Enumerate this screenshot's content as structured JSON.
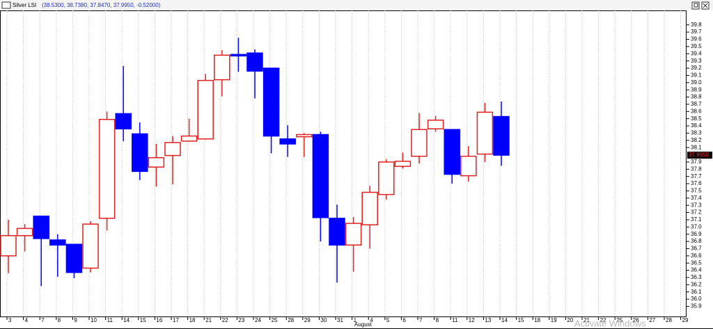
{
  "header": {
    "title": "Silver LSI",
    "values_text": "(38.5300, 38.7380, 37.8470, 37.9950, -0.52000)"
  },
  "chart_data": {
    "type": "candlestick",
    "categories": [
      "3",
      "4",
      "7",
      "8",
      "9",
      "10",
      "11",
      "14",
      "15",
      "16",
      "17",
      "18",
      "21",
      "22",
      "23",
      "24",
      "25",
      "28",
      "29",
      "30",
      "31",
      "1",
      "4",
      "5",
      "6",
      "7",
      "8",
      "11",
      "12",
      "13",
      "14",
      "15",
      "18",
      "19",
      "20",
      "21",
      "22",
      "25",
      "26",
      "27",
      "28",
      "29"
    ],
    "x_group_label": "August",
    "open": [
      36.6,
      36.88,
      37.15,
      36.82,
      36.76,
      36.43,
      37.12,
      38.57,
      38.29,
      37.83,
      37.99,
      38.19,
      38.22,
      39.04,
      39.39,
      39.41,
      39.2,
      38.22,
      38.25,
      38.28,
      37.12,
      36.75,
      37.03,
      37.45,
      37.84,
      37.98,
      38.36,
      38.35,
      37.71,
      38.01,
      38.53,
      null,
      null,
      null,
      null,
      null,
      null,
      null,
      null,
      null,
      null,
      null
    ],
    "high": [
      37.1,
      37.04,
      37.15,
      36.9,
      36.76,
      37.08,
      38.6,
      39.23,
      38.45,
      38.15,
      38.26,
      38.5,
      39.12,
      39.45,
      39.62,
      39.46,
      39.2,
      38.41,
      38.3,
      38.32,
      37.31,
      37.14,
      37.57,
      37.94,
      38.03,
      38.58,
      38.54,
      38.35,
      38.12,
      38.72,
      38.738,
      null,
      null,
      null,
      null,
      null,
      null,
      null,
      null,
      null,
      null,
      null
    ],
    "low": [
      36.36,
      36.66,
      36.18,
      36.31,
      36.29,
      36.37,
      36.95,
      38.19,
      37.65,
      37.56,
      37.59,
      38.18,
      38.21,
      38.81,
      39.15,
      38.78,
      38.02,
      37.97,
      37.97,
      36.8,
      36.23,
      36.38,
      36.7,
      37.38,
      37.81,
      37.88,
      38.32,
      37.6,
      37.63,
      37.9,
      37.847,
      null,
      null,
      null,
      null,
      null,
      null,
      null,
      null,
      null,
      null,
      null
    ],
    "close": [
      36.88,
      36.98,
      36.84,
      36.75,
      36.37,
      37.04,
      38.49,
      38.36,
      37.77,
      37.96,
      38.17,
      38.26,
      39.03,
      39.38,
      39.37,
      39.16,
      38.26,
      38.15,
      38.28,
      37.13,
      36.75,
      37.05,
      37.48,
      37.9,
      37.91,
      38.35,
      38.48,
      37.73,
      37.98,
      38.59,
      37.995,
      null,
      null,
      null,
      null,
      null,
      null,
      null,
      null,
      null,
      null,
      null
    ],
    "up_color": "#e02020",
    "down_color": "#0000ff",
    "ylim": [
      35.76,
      40.0
    ],
    "yticks": [
      35.9,
      {
        "value": 36,
        "label": "36.0"
      },
      36.1,
      36.2,
      36.3,
      36.4,
      36.5,
      36.6,
      36.7,
      36.8,
      36.9,
      {
        "value": 37,
        "label": "37.0"
      },
      37.1,
      37.2,
      37.3,
      37.4,
      37.5,
      37.6,
      37.7,
      37.8,
      37.9,
      38.1,
      38.2,
      38.3,
      38.4,
      38.5,
      38.6,
      38.7,
      38.8,
      38.9,
      {
        "value": 39,
        "label": "39.0"
      },
      39.1,
      39.2,
      39.3,
      39.4,
      39.5,
      39.6,
      39.7,
      39.8
    ],
    "price_marker": {
      "value": 37.995,
      "label": "37.9950"
    },
    "grid": true
  },
  "watermark": "Activate Windows"
}
